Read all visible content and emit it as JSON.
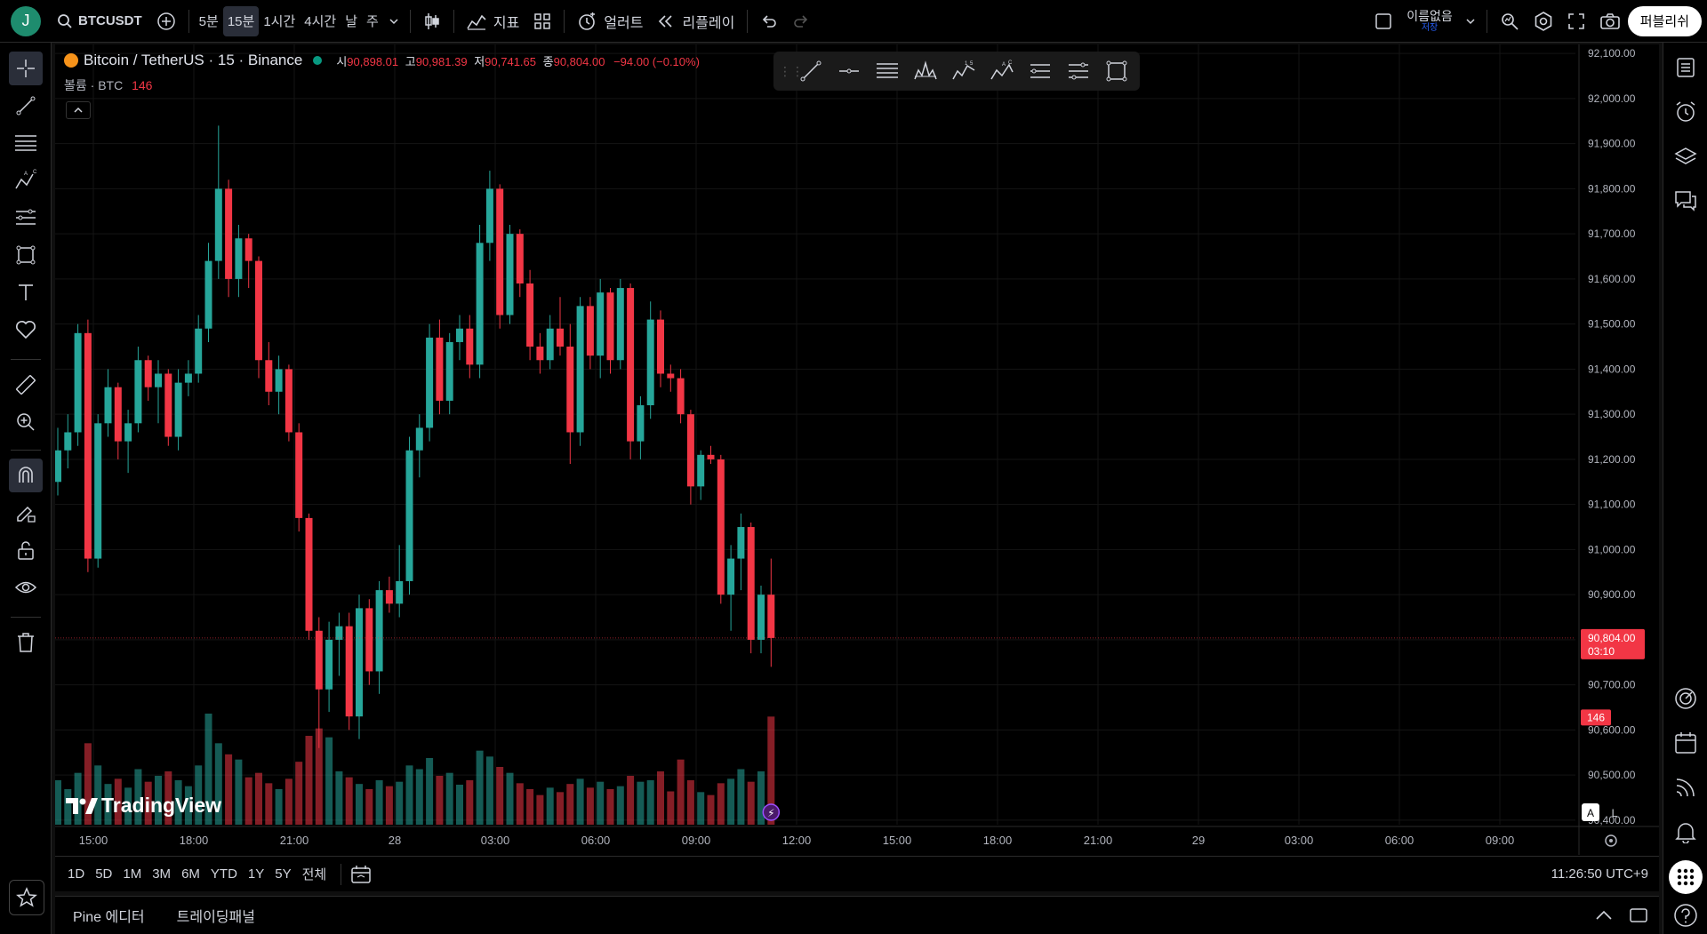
{
  "user": {
    "initial": "J"
  },
  "topbar": {
    "symbol": "BTCUSDT",
    "timeframes": [
      "5분",
      "15분",
      "1시간",
      "4시간",
      "날",
      "주"
    ],
    "active_timeframe": "15분",
    "indicators_label": "지표",
    "alert_label": "얼러트",
    "replay_label": "리플레이",
    "layout_name": "이름없음",
    "layout_save": "저장",
    "publish_label": "퍼블리쉬"
  },
  "legend": {
    "title": "Bitcoin / TetherUS · 15 · Binance",
    "open_label": "시",
    "open": "90,898.01",
    "high_label": "고",
    "high": "90,981.39",
    "low_label": "저",
    "low": "90,741.65",
    "close_label": "종",
    "close": "90,804.00",
    "change": "−94.00 (−0.10%)",
    "volume_label": "볼륨 · BTC",
    "volume_value": "146"
  },
  "brand": {
    "logo_text": "TradingView"
  },
  "colors": {
    "up": "#26a69a",
    "down": "#f23645",
    "background": "#000000",
    "grid": "#141414"
  },
  "chart_data": {
    "type": "candlestick",
    "symbol": "Bitcoin / TetherUS",
    "interval": "15",
    "exchange": "Binance",
    "ylim": [
      90390,
      92120
    ],
    "price_ticks": [
      "92,100.00",
      "92,000.00",
      "91,900.00",
      "91,800.00",
      "91,700.00",
      "91,600.00",
      "91,500.00",
      "91,400.00",
      "91,300.00",
      "91,200.00",
      "91,100.00",
      "91,000.00",
      "90,900.00",
      "90,800.00",
      "90,700.00",
      "90,600.00",
      "90,500.00",
      "90,400.00"
    ],
    "price_tick_values": [
      92100,
      92000,
      91900,
      91800,
      91700,
      91600,
      91500,
      91400,
      91300,
      91200,
      91100,
      91000,
      90900,
      90800,
      90700,
      90600,
      90500,
      90400
    ],
    "time_ticks": [
      "15:00",
      "18:00",
      "21:00",
      "28",
      "03:00",
      "06:00",
      "09:00",
      "12:00",
      "15:00",
      "18:00",
      "21:00",
      "29",
      "03:00",
      "06:00",
      "09:00"
    ],
    "last_price_label": "90,804.00",
    "last_price": 90804,
    "countdown": "03:10",
    "last_volume_label": "146",
    "volume_max": 180,
    "candles": [
      {
        "o": 91150,
        "h": 91270,
        "l": 91120,
        "c": 91220,
        "v": 60
      },
      {
        "o": 91220,
        "h": 91300,
        "l": 91180,
        "c": 91260,
        "v": 48
      },
      {
        "o": 91260,
        "h": 91500,
        "l": 91230,
        "c": 91480,
        "v": 70
      },
      {
        "o": 91480,
        "h": 91510,
        "l": 90950,
        "c": 90980,
        "v": 110
      },
      {
        "o": 90980,
        "h": 91300,
        "l": 90960,
        "c": 91280,
        "v": 80
      },
      {
        "o": 91280,
        "h": 91400,
        "l": 91250,
        "c": 91360,
        "v": 55
      },
      {
        "o": 91360,
        "h": 91370,
        "l": 91200,
        "c": 91240,
        "v": 62
      },
      {
        "o": 91240,
        "h": 91310,
        "l": 91170,
        "c": 91280,
        "v": 50
      },
      {
        "o": 91280,
        "h": 91450,
        "l": 91260,
        "c": 91420,
        "v": 75
      },
      {
        "o": 91420,
        "h": 91430,
        "l": 91330,
        "c": 91360,
        "v": 58
      },
      {
        "o": 91360,
        "h": 91420,
        "l": 91280,
        "c": 91390,
        "v": 66
      },
      {
        "o": 91390,
        "h": 91400,
        "l": 91230,
        "c": 91250,
        "v": 72
      },
      {
        "o": 91250,
        "h": 91400,
        "l": 91220,
        "c": 91370,
        "v": 60
      },
      {
        "o": 91370,
        "h": 91420,
        "l": 91340,
        "c": 91390,
        "v": 52
      },
      {
        "o": 91390,
        "h": 91520,
        "l": 91370,
        "c": 91490,
        "v": 80
      },
      {
        "o": 91490,
        "h": 91680,
        "l": 91460,
        "c": 91640,
        "v": 150
      },
      {
        "o": 91640,
        "h": 91940,
        "l": 91600,
        "c": 91800,
        "v": 110
      },
      {
        "o": 91800,
        "h": 91820,
        "l": 91560,
        "c": 91600,
        "v": 95
      },
      {
        "o": 91600,
        "h": 91720,
        "l": 91560,
        "c": 91690,
        "v": 88
      },
      {
        "o": 91690,
        "h": 91700,
        "l": 91580,
        "c": 91640,
        "v": 64
      },
      {
        "o": 91640,
        "h": 91650,
        "l": 91380,
        "c": 91420,
        "v": 70
      },
      {
        "o": 91420,
        "h": 91460,
        "l": 91320,
        "c": 91350,
        "v": 56
      },
      {
        "o": 91350,
        "h": 91430,
        "l": 91300,
        "c": 91400,
        "v": 48
      },
      {
        "o": 91400,
        "h": 91410,
        "l": 91240,
        "c": 91260,
        "v": 62
      },
      {
        "o": 91260,
        "h": 91280,
        "l": 91040,
        "c": 91070,
        "v": 85
      },
      {
        "o": 91070,
        "h": 91080,
        "l": 90800,
        "c": 90820,
        "v": 120
      },
      {
        "o": 90820,
        "h": 90850,
        "l": 90560,
        "c": 90690,
        "v": 130
      },
      {
        "o": 90690,
        "h": 90840,
        "l": 90640,
        "c": 90800,
        "v": 118
      },
      {
        "o": 90800,
        "h": 90860,
        "l": 90720,
        "c": 90830,
        "v": 72
      },
      {
        "o": 90830,
        "h": 90860,
        "l": 90600,
        "c": 90630,
        "v": 64
      },
      {
        "o": 90630,
        "h": 90900,
        "l": 90580,
        "c": 90870,
        "v": 55
      },
      {
        "o": 90870,
        "h": 90890,
        "l": 90700,
        "c": 90730,
        "v": 48
      },
      {
        "o": 90730,
        "h": 90930,
        "l": 90680,
        "c": 90910,
        "v": 60
      },
      {
        "o": 90910,
        "h": 90940,
        "l": 90860,
        "c": 90880,
        "v": 52
      },
      {
        "o": 90880,
        "h": 91010,
        "l": 90850,
        "c": 90930,
        "v": 58
      },
      {
        "o": 90930,
        "h": 91250,
        "l": 90900,
        "c": 91220,
        "v": 80
      },
      {
        "o": 91220,
        "h": 91300,
        "l": 91160,
        "c": 91270,
        "v": 75
      },
      {
        "o": 91270,
        "h": 91500,
        "l": 91240,
        "c": 91470,
        "v": 90
      },
      {
        "o": 91470,
        "h": 91510,
        "l": 91300,
        "c": 91330,
        "v": 66
      },
      {
        "o": 91330,
        "h": 91480,
        "l": 91300,
        "c": 91460,
        "v": 70
      },
      {
        "o": 91460,
        "h": 91520,
        "l": 91420,
        "c": 91490,
        "v": 54
      },
      {
        "o": 91490,
        "h": 91520,
        "l": 91380,
        "c": 91410,
        "v": 60
      },
      {
        "o": 91410,
        "h": 91720,
        "l": 91380,
        "c": 91680,
        "v": 100
      },
      {
        "o": 91680,
        "h": 91840,
        "l": 91640,
        "c": 91800,
        "v": 92
      },
      {
        "o": 91800,
        "h": 91810,
        "l": 91490,
        "c": 91520,
        "v": 78
      },
      {
        "o": 91520,
        "h": 91720,
        "l": 91500,
        "c": 91700,
        "v": 70
      },
      {
        "o": 91700,
        "h": 91710,
        "l": 91560,
        "c": 91590,
        "v": 56
      },
      {
        "o": 91590,
        "h": 91620,
        "l": 91420,
        "c": 91450,
        "v": 48
      },
      {
        "o": 91450,
        "h": 91480,
        "l": 91390,
        "c": 91420,
        "v": 40
      },
      {
        "o": 91420,
        "h": 91520,
        "l": 91400,
        "c": 91490,
        "v": 50
      },
      {
        "o": 91490,
        "h": 91560,
        "l": 91430,
        "c": 91450,
        "v": 44
      },
      {
        "o": 91450,
        "h": 91500,
        "l": 91190,
        "c": 91260,
        "v": 55
      },
      {
        "o": 91260,
        "h": 91560,
        "l": 91230,
        "c": 91540,
        "v": 62
      },
      {
        "o": 91540,
        "h": 91560,
        "l": 91400,
        "c": 91430,
        "v": 50
      },
      {
        "o": 91430,
        "h": 91600,
        "l": 91380,
        "c": 91570,
        "v": 58
      },
      {
        "o": 91570,
        "h": 91580,
        "l": 91390,
        "c": 91420,
        "v": 48
      },
      {
        "o": 91420,
        "h": 91600,
        "l": 91400,
        "c": 91580,
        "v": 52
      },
      {
        "o": 91580,
        "h": 91590,
        "l": 91200,
        "c": 91240,
        "v": 66
      },
      {
        "o": 91240,
        "h": 91340,
        "l": 91200,
        "c": 91320,
        "v": 58
      },
      {
        "o": 91320,
        "h": 91550,
        "l": 91290,
        "c": 91510,
        "v": 60
      },
      {
        "o": 91510,
        "h": 91530,
        "l": 91360,
        "c": 91390,
        "v": 72
      },
      {
        "o": 91390,
        "h": 91410,
        "l": 91350,
        "c": 91380,
        "v": 45
      },
      {
        "o": 91380,
        "h": 91400,
        "l": 91280,
        "c": 91300,
        "v": 88
      },
      {
        "o": 91300,
        "h": 91310,
        "l": 91100,
        "c": 91140,
        "v": 60
      },
      {
        "o": 91140,
        "h": 91220,
        "l": 91110,
        "c": 91210,
        "v": 44
      },
      {
        "o": 91210,
        "h": 91230,
        "l": 91190,
        "c": 91200,
        "v": 40
      },
      {
        "o": 91200,
        "h": 91210,
        "l": 90880,
        "c": 90900,
        "v": 56
      },
      {
        "o": 90900,
        "h": 91010,
        "l": 90820,
        "c": 90980,
        "v": 62
      },
      {
        "o": 90980,
        "h": 91080,
        "l": 90910,
        "c": 91050,
        "v": 75
      },
      {
        "o": 91050,
        "h": 91060,
        "l": 90770,
        "c": 90800,
        "v": 58
      },
      {
        "o": 90800,
        "h": 90920,
        "l": 90770,
        "c": 90900,
        "v": 72
      },
      {
        "o": 90900,
        "h": 90980,
        "l": 90740,
        "c": 90804,
        "v": 146
      }
    ]
  },
  "range_bar": {
    "ranges": [
      "1D",
      "5D",
      "1M",
      "3M",
      "6M",
      "YTD",
      "1Y",
      "5Y",
      "전체"
    ],
    "clock": "11:26:50 UTC+9"
  },
  "scale_buttons": {
    "auto": "A",
    "log": "L"
  },
  "bottom_panel": {
    "tabs": [
      "Pine 에디터",
      "트레이딩패널"
    ]
  }
}
